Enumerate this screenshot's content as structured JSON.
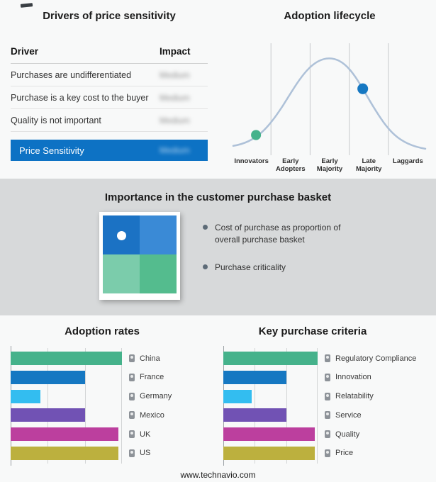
{
  "page": {
    "footer": "www.technavio.com"
  },
  "drivers_panel": {
    "title": "Drivers of price sensitivity",
    "table": {
      "driver_header": "Driver",
      "impact_header": "Impact",
      "rows": [
        {
          "driver": "Purchases are undifferentiated",
          "impact": "Medium"
        },
        {
          "driver": "Purchase is a key cost to the buyer",
          "impact": "Medium"
        },
        {
          "driver": "Quality is not important",
          "impact": "Medium"
        }
      ],
      "summary": {
        "label": "Price Sensitivity",
        "impact": "Medium",
        "bar_color": "#0d72c4"
      }
    }
  },
  "lifecycle_panel": {
    "title": "Adoption lifecycle",
    "stages": [
      "Innovators",
      "Early Adopters",
      "Early Majority",
      "Late Majority",
      "Laggards"
    ],
    "curve_color": "#aec1d8",
    "markers": [
      {
        "position": "between Innovators and Early Adopters",
        "color": "#45b28b"
      },
      {
        "position": "Late Majority",
        "color": "#1678c2"
      }
    ]
  },
  "basket_panel": {
    "title": "Importance in the customer purchase basket",
    "bullets": [
      "Cost of purchase as proportion of overall purchase basket",
      "Purchase criticality"
    ],
    "quadrant_colors": [
      "#1b72c4",
      "#3a8ad6",
      "#7bccab",
      "#54bc8e"
    ]
  },
  "chart_data": [
    {
      "type": "bar",
      "orientation": "horizontal",
      "title": "Adoption rates",
      "categories": [
        "China",
        "France",
        "Germany",
        "Mexico",
        "UK",
        "US"
      ],
      "values": [
        100,
        67,
        27,
        67,
        97,
        97
      ],
      "colors": [
        "#45b28b",
        "#1678c2",
        "#33bdf0",
        "#7152b4",
        "#bc3f9e",
        "#bcb03e"
      ],
      "xlim": [
        0,
        100
      ],
      "grid": true,
      "legend_position": "right",
      "axis_tick_labels": "none shown; values are relative bar lengths (% of axis)"
    },
    {
      "type": "bar",
      "orientation": "horizontal",
      "title": "Key purchase criteria",
      "categories": [
        "Regulatory Compliance",
        "Innovation",
        "Relatability",
        "Service",
        "Quality",
        "Price"
      ],
      "values": [
        100,
        67,
        30,
        67,
        97,
        97
      ],
      "colors": [
        "#45b28b",
        "#1678c2",
        "#33bdf0",
        "#7152b4",
        "#bc3f9e",
        "#bcb03e"
      ],
      "xlim": [
        0,
        100
      ],
      "grid": true,
      "legend_position": "right",
      "axis_tick_labels": "none shown; values are relative bar lengths (% of axis)"
    }
  ]
}
